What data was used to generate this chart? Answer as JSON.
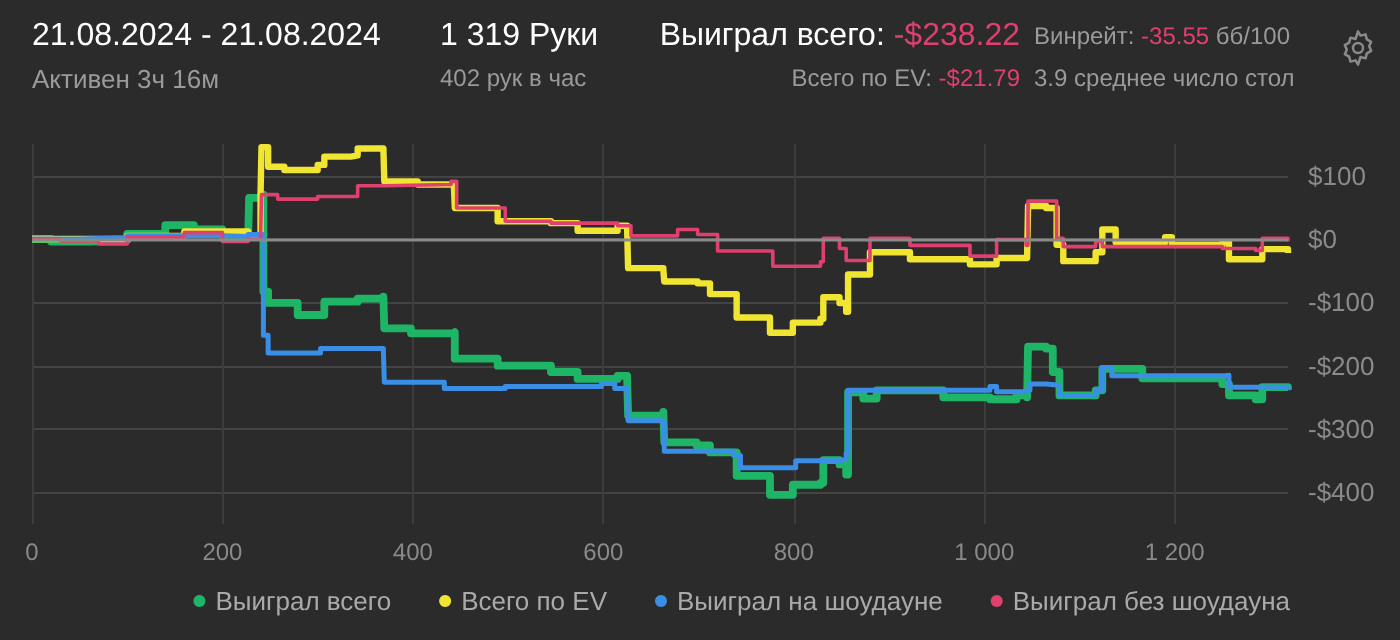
{
  "chart_data": {
    "type": "step",
    "title": "21.08.2024 - 21.08.2024",
    "subtitle": "Активен 3ч 16м",
    "annotations": [
      "1 319 Руки",
      "402 рук в час",
      "Выиграл всего: -$238.22",
      "Всего по EV: -$21.79",
      "Винрейт: -35.55 бб/100",
      "3.9 среднее число стол"
    ],
    "xlim": [
      0,
      1319
    ],
    "xticks": [
      0,
      200,
      400,
      600,
      800,
      {
        "value": 1000,
        "label": "1 000"
      },
      {
        "value": 1200,
        "label": "1 200"
      }
    ],
    "ylim": [
      -450,
      150
    ],
    "yticks": [
      {
        "value": 100,
        "label": "$100"
      },
      {
        "value": 0,
        "label": "$0"
      },
      {
        "value": -100,
        "label": "-$100"
      },
      {
        "value": -200,
        "label": "-$200"
      },
      {
        "value": -300,
        "label": "-$300"
      },
      {
        "value": -400,
        "label": "-$400"
      }
    ],
    "grid": true,
    "legend": "bottom right",
    "series": [
      {
        "name": "Выиграл всего",
        "color": "#1fb567",
        "x": [
          0,
          20,
          60,
          100,
          140,
          170,
          200,
          227,
          228,
          241,
          243,
          248,
          279,
          307,
          342,
          369,
          370,
          398,
          443,
          444,
          489,
          545,
          573,
          615,
          625,
          626,
          663,
          664,
          698,
          712,
          740,
          775,
          799,
          828,
          831,
          848,
          855,
          857,
          873,
          887,
          957,
          1006,
          1034,
          1045,
          1046,
          1065,
          1072,
          1079,
          1117,
          1124,
          1166,
          1250,
          1257,
          1285,
          1292,
          1319
        ],
        "values": [
          0,
          -4,
          -2,
          8,
          22,
          15,
          2,
          2,
          65,
          70,
          -83,
          -101,
          -120,
          -99,
          -94,
          -91,
          -141,
          -149,
          -147,
          -189,
          -200,
          -210,
          -221,
          -216,
          -221,
          -279,
          -273,
          -321,
          -326,
          -337,
          -374,
          -404,
          -388,
          -385,
          -349,
          -356,
          -372,
          -242,
          -252,
          -239,
          -250,
          -253,
          -247,
          -250,
          -170,
          -173,
          -210,
          -247,
          -239,
          -205,
          -220,
          -229,
          -247,
          -253,
          -234,
          -238
        ]
      },
      {
        "name": "Всего по EV",
        "color": "#f0e532",
        "x": [
          0,
          100,
          160,
          227,
          240,
          241,
          248,
          265,
          300,
          307,
          335,
          342,
          369,
          370,
          405,
          443,
          444,
          489,
          545,
          573,
          615,
          625,
          626,
          663,
          664,
          699,
          712,
          740,
          775,
          799,
          828,
          831,
          848,
          855,
          857,
          880,
          922,
          985,
          1013,
          1045,
          1046,
          1065,
          1076,
          1083,
          1117,
          1124,
          1138,
          1190,
          1197,
          1250,
          1257,
          1285,
          1292,
          1319
        ],
        "values": [
          0,
          5,
          12,
          3,
          70,
          145,
          114,
          109,
          117,
          130,
          132,
          143,
          143,
          91,
          86,
          86,
          49,
          28,
          25,
          13,
          21,
          15,
          -46,
          -49,
          -67,
          -70,
          -87,
          -124,
          -148,
          -132,
          -126,
          -92,
          -101,
          -115,
          -56,
          -21,
          -32,
          -40,
          -30,
          -30,
          52,
          49,
          -9,
          -35,
          -21,
          15,
          -5,
          3,
          -9,
          -5,
          -32,
          -32,
          -16,
          -22
        ]
      },
      {
        "name": "Выиграл на шоудауне",
        "color": "#3a8ee6",
        "x": [
          0,
          50,
          100,
          200,
          227,
          241,
          243,
          248,
          300,
          303,
          369,
          370,
          433,
          497,
          598,
          612,
          625,
          626,
          663,
          664,
          698,
          737,
          744,
          799,
          802,
          848,
          855,
          857,
          1006,
          1013,
          1041,
          1048,
          1065,
          1079,
          1117,
          1124,
          1134,
          1253,
          1257,
          1319
        ],
        "values": [
          0,
          2,
          5,
          4,
          7,
          7,
          -152,
          -180,
          -180,
          -173,
          -177,
          -226,
          -236,
          -233,
          -228,
          -236,
          -236,
          -287,
          -289,
          -335,
          -335,
          -342,
          -361,
          -361,
          -350,
          -348,
          -338,
          -239,
          -233,
          -241,
          -239,
          -229,
          -231,
          -247,
          -239,
          -203,
          -216,
          -215,
          -234,
          -239
        ]
      },
      {
        "name": "Выиграл без шоудауна",
        "color": "#e0406e",
        "x": [
          0,
          30,
          70,
          100,
          160,
          200,
          227,
          240,
          241,
          258,
          300,
          342,
          371,
          440,
          446,
          497,
          545,
          615,
          629,
          678,
          699,
          720,
          778,
          828,
          831,
          848,
          855,
          880,
          922,
          985,
          1013,
          1044,
          1046,
          1065,
          1076,
          1083,
          1117,
          1124,
          1250,
          1285,
          1292,
          1319
        ],
        "values": [
          0,
          -3,
          -8,
          3,
          10,
          -4,
          0,
          0,
          70,
          63,
          67,
          84,
          86,
          91,
          49,
          28,
          25,
          21,
          5,
          15,
          7,
          -19,
          -43,
          -36,
          1,
          -15,
          -34,
          1,
          -10,
          -27,
          -1,
          -10,
          60,
          60,
          1,
          -12,
          -4,
          -12,
          -15,
          -18,
          1,
          -4
        ]
      }
    ]
  }
}
